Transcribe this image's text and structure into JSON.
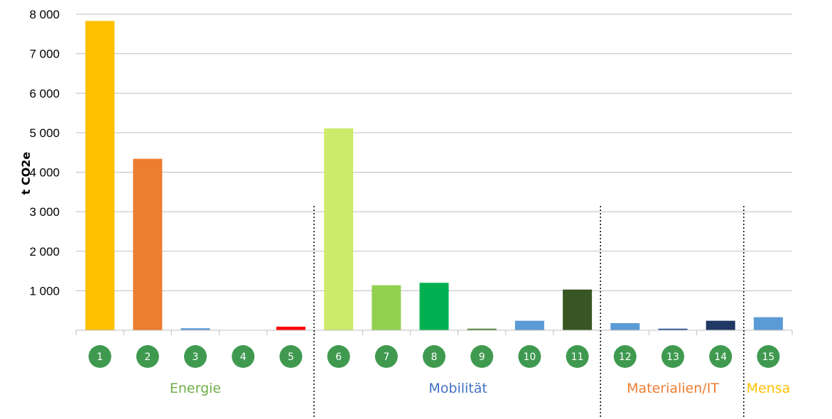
{
  "chart_data": {
    "type": "bar",
    "categories": [
      "1",
      "2",
      "3",
      "4",
      "5",
      "6",
      "7",
      "8",
      "9",
      "10",
      "11",
      "12",
      "13",
      "14",
      "15"
    ],
    "values": [
      7830,
      4340,
      50,
      0,
      90,
      5110,
      1140,
      1200,
      40,
      240,
      1030,
      180,
      40,
      240,
      330
    ],
    "colors": [
      "#FFC000",
      "#ED7D31",
      "#5B9BD5",
      "#5B9BD5",
      "#FF0000",
      "#CCEB6A",
      "#92D050",
      "#00B050",
      "#548235",
      "#5B9BD5",
      "#375623",
      "#5B9BD5",
      "#2F5597",
      "#1F3864",
      "#5B9BD5"
    ],
    "ylabel": "t CO2e",
    "ylim": [
      0,
      8000
    ],
    "yticks": [
      1000,
      2000,
      3000,
      4000,
      5000,
      6000,
      7000,
      8000
    ],
    "ytick_labels": [
      "1 000",
      "2 000",
      "3 000",
      "4 000",
      "5 000",
      "6 000",
      "7 000",
      "8 000"
    ],
    "grid": true,
    "marker_color": "#3F9A50",
    "groups": [
      {
        "label": "Energie",
        "categories": [
          "1",
          "2",
          "3",
          "4",
          "5"
        ],
        "color": "#70AD47"
      },
      {
        "label": "Mobilität",
        "categories": [
          "6",
          "7",
          "8",
          "9",
          "10",
          "11"
        ],
        "color": "#4472C4"
      },
      {
        "label": "Materialien/IT",
        "categories": [
          "12",
          "13",
          "14"
        ],
        "color": "#ED7D31"
      },
      {
        "label": "Mensa",
        "categories": [
          "15"
        ],
        "color": "#FFC000"
      }
    ]
  }
}
